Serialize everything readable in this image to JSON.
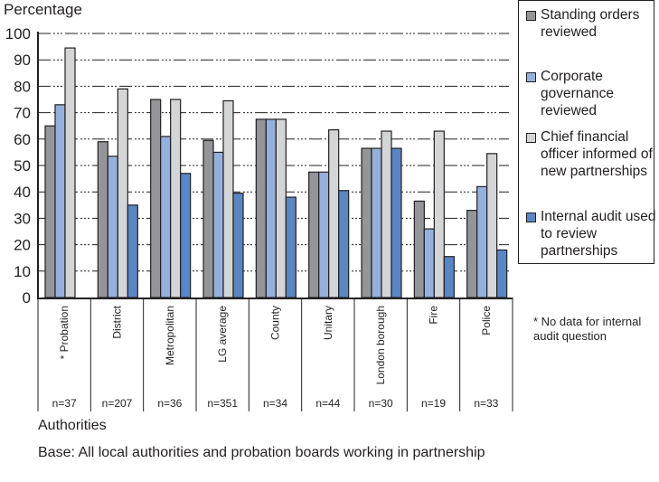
{
  "chart_data": {
    "type": "bar",
    "ylabel": "Percentage",
    "xlabel": "Authorities",
    "ylim": [
      0,
      100
    ],
    "yticks": [
      0,
      10,
      20,
      30,
      40,
      50,
      60,
      70,
      80,
      90,
      100
    ],
    "grid": true,
    "legend_position": "right",
    "categories": [
      "* Probation",
      "District",
      "Metropolitan",
      "LG average",
      "County",
      "Unitary",
      "London borough",
      "Fire",
      "Police"
    ],
    "sample_sizes": [
      "n=37",
      "n=207",
      "n=36",
      "n=351",
      "n=34",
      "n=44",
      "n=30",
      "n=19",
      "n=33"
    ],
    "series": [
      {
        "name": "Standing orders reviewed",
        "color": "#939598",
        "values": [
          65,
          59,
          75,
          59.5,
          67.5,
          47.5,
          56.5,
          36.5,
          33
        ]
      },
      {
        "name": "Corporate governance reviewed",
        "color": "#95b0dc",
        "values": [
          73,
          53.5,
          61,
          55,
          67.5,
          47.5,
          56.5,
          26,
          42
        ]
      },
      {
        "name": "Chief financial officer informed of new partnerships",
        "color": "#d4d5d7",
        "values": [
          94.5,
          79,
          75,
          74.5,
          67.5,
          63.5,
          63,
          63,
          54.5
        ]
      },
      {
        "name": "Internal audit used to review partnerships",
        "color": "#5a86c4",
        "values": [
          null,
          35,
          47,
          39.5,
          38,
          40.5,
          56.5,
          15.5,
          18
        ]
      }
    ],
    "legend_lines": [
      [
        "Standing",
        "orders",
        "reviewed"
      ],
      [
        "Corporate",
        "governance",
        "reviewed"
      ],
      [
        "Chief financial",
        "officer informed",
        "of new",
        "partnerships"
      ],
      [
        "Internal audit",
        "used to review",
        "partnerships"
      ]
    ],
    "note": "* No data for internal audit question",
    "base": "Base: All local authorities and probation boards working in partnership"
  }
}
